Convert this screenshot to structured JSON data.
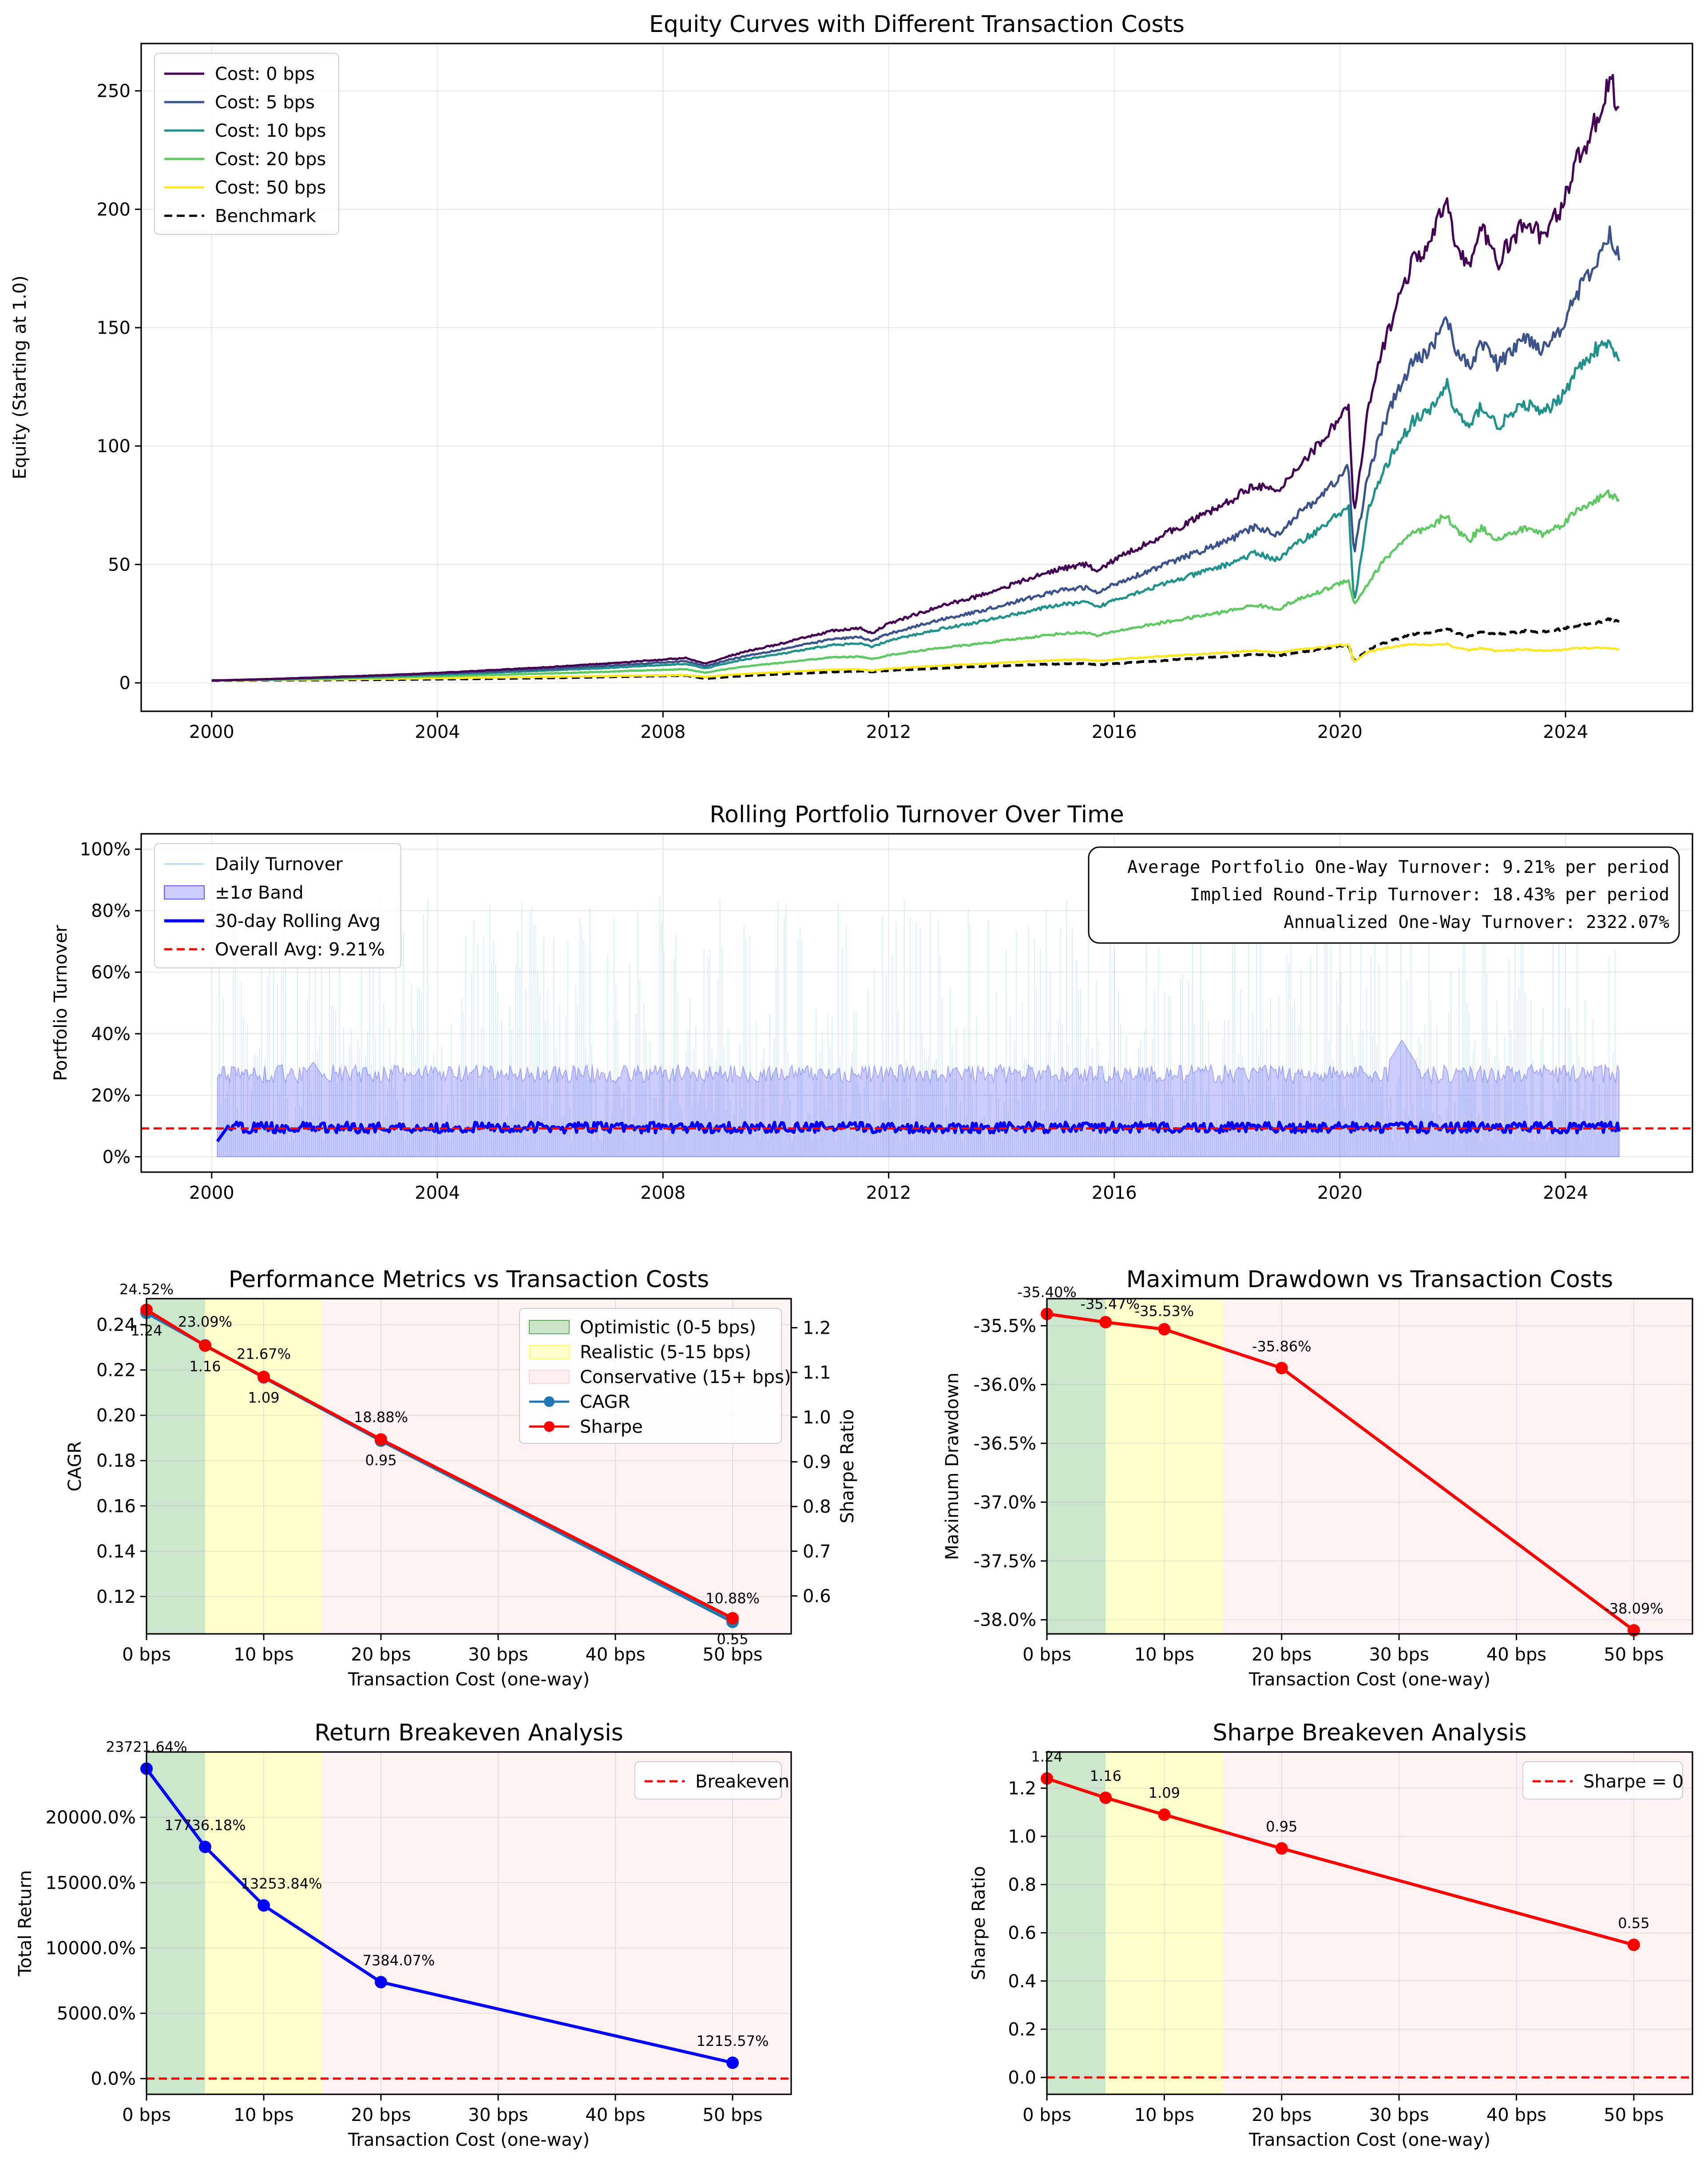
{
  "figure": {
    "panels": 6
  },
  "colors": {
    "cost_0": "#440154",
    "cost_5": "#3b528b",
    "cost_10": "#21918c",
    "cost_20": "#5ec962",
    "cost_50": "#fde725",
    "benchmark": "#000000",
    "band": "#0000ff",
    "rolling": "#0000ff",
    "avg_line": "#ff0000",
    "sharpe": "#ff0000",
    "cagr": "#1f77b4",
    "total_return": "#0000ff",
    "zone_optimistic": "#008000",
    "zone_realistic": "#ffff00",
    "zone_conservative": "#ffc0cb"
  },
  "chart_data": [
    {
      "id": "equity",
      "type": "line",
      "title": "Equity Curves with Different Transaction Costs",
      "xlabel": "",
      "ylabel": "Equity (Starting at 1.0)",
      "xlim": [
        1998.75,
        2026.25
      ],
      "ylim": [
        -12,
        270
      ],
      "x_ticks": [
        2000,
        2004,
        2008,
        2012,
        2016,
        2020,
        2024
      ],
      "x_tick_labels": [
        "2000",
        "2004",
        "2008",
        "2012",
        "2016",
        "2020",
        "2024"
      ],
      "y_ticks": [
        0,
        50,
        100,
        150,
        200,
        250
      ],
      "y_tick_labels": [
        "0",
        "50",
        "100",
        "150",
        "200",
        "250"
      ],
      "grid": true,
      "legend_position": "top-left",
      "x": [
        2000.0,
        2001.0,
        2002.0,
        2003.0,
        2004.0,
        2005.0,
        2006.0,
        2007.0,
        2007.8,
        2008.4,
        2008.75,
        2009.2,
        2009.6,
        2010.0,
        2010.5,
        2011.0,
        2011.5,
        2011.7,
        2012.0,
        2012.5,
        2013.0,
        2013.5,
        2014.0,
        2014.5,
        2015.0,
        2015.5,
        2015.7,
        2016.0,
        2016.5,
        2017.0,
        2017.5,
        2018.0,
        2018.5,
        2018.9,
        2019.2,
        2019.6,
        2020.0,
        2020.15,
        2020.25,
        2020.5,
        2020.75,
        2021.0,
        2021.3,
        2021.6,
        2021.9,
        2022.0,
        2022.3,
        2022.5,
        2022.8,
        2023.0,
        2023.3,
        2023.6,
        2023.9,
        2024.2,
        2024.5,
        2024.8,
        2024.95
      ],
      "series": [
        {
          "name": "Cost: 0 bps",
          "color_key": "cost_0",
          "dash": false,
          "values": [
            1,
            1.6,
            2.4,
            3.2,
            4.2,
            5.4,
            6.7,
            8.2,
            9.5,
            10.5,
            8.0,
            11.5,
            14.0,
            16.0,
            19.0,
            22.0,
            23.0,
            21.0,
            25.0,
            29.0,
            33.0,
            36.0,
            40.0,
            44.0,
            48.0,
            50.0,
            47.0,
            52.0,
            58.0,
            64.0,
            70.0,
            76.0,
            84.0,
            80.0,
            90.0,
            100.0,
            112.0,
            118.0,
            70.0,
            115.0,
            140.0,
            160.0,
            178.0,
            185.0,
            205.0,
            190.0,
            175.0,
            192.0,
            178.0,
            185.0,
            195.0,
            188.0,
            200.0,
            220.0,
            235.0,
            255.0,
            240.0
          ]
        },
        {
          "name": "Cost: 5 bps",
          "color_key": "cost_5",
          "dash": false,
          "values": [
            1,
            1.5,
            2.2,
            2.9,
            3.8,
            4.8,
            5.9,
            7.2,
            8.3,
            9.2,
            7.0,
            10.0,
            12.0,
            13.7,
            16.1,
            18.5,
            19.3,
            17.6,
            20.8,
            24.0,
            27.2,
            29.6,
            32.7,
            35.8,
            38.9,
            40.3,
            37.8,
            41.7,
            46.3,
            50.9,
            55.4,
            59.9,
            65.9,
            62.6,
            70.2,
            77.7,
            86.8,
            91.3,
            54.0,
            88.4,
            107.2,
            122.1,
            135.5,
            140.5,
            155.3,
            143.7,
            132.1,
            144.9,
            134.1,
            139.1,
            146.4,
            140.9,
            149.6,
            164.3,
            175.1,
            189.7,
            178.2
          ]
        },
        {
          "name": "Cost: 10 bps",
          "color_key": "cost_10",
          "dash": false,
          "values": [
            1,
            1.45,
            2.0,
            2.7,
            3.4,
            4.3,
            5.3,
            6.3,
            7.3,
            8.0,
            6.1,
            8.7,
            10.5,
            11.9,
            13.9,
            16.0,
            16.6,
            15.1,
            17.8,
            20.5,
            23.2,
            25.2,
            27.8,
            30.3,
            32.9,
            34.0,
            31.8,
            35.1,
            38.9,
            42.6,
            46.3,
            50.0,
            54.8,
            52.0,
            58.2,
            64.3,
            71.7,
            75.3,
            33.0,
            72.6,
            88.0,
            100.0,
            110.7,
            114.6,
            126.4,
            116.8,
            107.1,
            117.3,
            108.4,
            112.3,
            118.0,
            113.4,
            120.3,
            131.9,
            140.4,
            143.0,
            134.0
          ]
        },
        {
          "name": "Cost: 20 bps",
          "color_key": "cost_20",
          "dash": false,
          "values": [
            1,
            1.35,
            1.75,
            2.2,
            2.75,
            3.35,
            4.0,
            4.7,
            5.35,
            5.8,
            4.3,
            6.1,
            7.3,
            8.2,
            9.5,
            10.8,
            11.1,
            10.0,
            11.7,
            13.4,
            15.0,
            16.2,
            17.7,
            19.2,
            20.7,
            21.3,
            19.8,
            21.7,
            23.9,
            26.0,
            28.1,
            30.2,
            32.9,
            31.1,
            34.6,
            38.0,
            42.1,
            44.0,
            33.0,
            42.0,
            50.7,
            57.3,
            63.1,
            65.1,
            71.5,
            65.8,
            60.2,
            65.7,
            60.5,
            62.5,
            65.5,
            62.8,
            66.4,
            72.6,
            77.0,
            80.0,
            76.0
          ]
        },
        {
          "name": "Cost: 50 bps",
          "color_key": "cost_50",
          "dash": false,
          "values": [
            1,
            1.2,
            1.45,
            1.7,
            1.95,
            2.25,
            2.55,
            2.85,
            3.1,
            3.25,
            2.5,
            3.4,
            4.0,
            4.4,
            5.0,
            5.6,
            5.7,
            5.2,
            6.0,
            6.7,
            7.4,
            7.9,
            8.5,
            9.1,
            9.6,
            9.8,
            9.2,
            9.9,
            10.7,
            11.4,
            12.1,
            12.8,
            13.6,
            12.8,
            13.9,
            14.8,
            15.9,
            16.2,
            9.0,
            13.0,
            14.5,
            15.5,
            16.3,
            16.0,
            16.5,
            15.2,
            13.8,
            14.6,
            13.4,
            13.8,
            14.1,
            13.5,
            13.9,
            14.6,
            14.8,
            14.5,
            14.0
          ]
        },
        {
          "name": "Benchmark",
          "color_key": "benchmark",
          "dash": true,
          "values": [
            1,
            1.1,
            1.2,
            1.35,
            1.55,
            1.8,
            2.1,
            2.5,
            2.9,
            3.1,
            1.8,
            2.6,
            3.2,
            3.6,
            4.1,
            4.6,
            5.0,
            4.6,
            5.2,
            5.8,
            6.3,
            6.8,
            7.2,
            7.6,
            8.0,
            8.2,
            7.6,
            8.1,
            8.8,
            9.6,
            10.4,
            11.2,
            12.2,
            11.3,
            12.7,
            14.0,
            15.5,
            16.0,
            9.0,
            14.0,
            16.5,
            18.5,
            20.5,
            21.0,
            23.0,
            21.5,
            19.5,
            21.8,
            20.5,
            21.2,
            22.0,
            21.4,
            22.6,
            24.0,
            25.0,
            27.0,
            26.0
          ]
        }
      ]
    },
    {
      "id": "turnover",
      "type": "area",
      "title": "Rolling Portfolio Turnover Over Time",
      "xlabel": "",
      "ylabel": "Portfolio Turnover",
      "xlim": [
        1998.75,
        2026.25
      ],
      "ylim": [
        -0.05,
        1.05
      ],
      "x_ticks": [
        2000,
        2004,
        2008,
        2012,
        2016,
        2020,
        2024
      ],
      "x_tick_labels": [
        "2000",
        "2004",
        "2008",
        "2012",
        "2016",
        "2020",
        "2024"
      ],
      "y_ticks": [
        0,
        0.2,
        0.4,
        0.6,
        0.8,
        1.0
      ],
      "y_tick_labels": [
        "0%",
        "20%",
        "40%",
        "60%",
        "80%",
        "100%"
      ],
      "grid": true,
      "legend_position": "top-left",
      "series_names": [
        "Daily Turnover",
        "±1σ Band",
        "30-day Rolling Avg",
        "Overall Avg: 9.21%"
      ],
      "overall_avg": 0.0921,
      "x_start": 2000.1,
      "x_end": 2024.95,
      "rolling_avg_level": 0.095,
      "band_upper_level": 0.27,
      "band_upper_bumps": [
        {
          "x": 2021.1,
          "value": 0.38
        },
        {
          "x": 2001.8,
          "value": 0.31
        }
      ],
      "daily_peak_level": 0.85,
      "stats_box": {
        "position": "top-right",
        "lines": [
          "Average Portfolio One-Way Turnover: 9.21% per period",
          "Implied Round-Trip Turnover: 18.43% per period",
          "Annualized One-Way Turnover: 2322.07%"
        ]
      }
    },
    {
      "id": "performance",
      "type": "line",
      "title": "Performance Metrics vs Transaction Costs",
      "xlabel": "Transaction Cost (one-way)",
      "ylabel": "CAGR",
      "ylabel_right": "Sharpe Ratio",
      "xlim": [
        0,
        55
      ],
      "ylim": [
        0.1035,
        0.2515
      ],
      "ylim_right": [
        0.515,
        1.265
      ],
      "x_ticks": [
        0,
        10,
        20,
        30,
        40,
        50
      ],
      "x_tick_labels": [
        "0 bps",
        "10 bps",
        "20 bps",
        "30 bps",
        "40 bps",
        "50 bps"
      ],
      "y_ticks": [
        0.12,
        0.14,
        0.16,
        0.18,
        0.2,
        0.22,
        0.24
      ],
      "y_tick_labels": [
        "0.12",
        "0.14",
        "0.16",
        "0.18",
        "0.20",
        "0.22",
        "0.24"
      ],
      "y_ticks_right": [
        0.6,
        0.7,
        0.8,
        0.9,
        1.0,
        1.1,
        1.2
      ],
      "y_tick_labels_right": [
        "0.6",
        "0.7",
        "0.8",
        "0.9",
        "1.0",
        "1.1",
        "1.2"
      ],
      "grid": true,
      "legend_position": "top-right",
      "x": [
        0,
        5,
        10,
        20,
        50
      ],
      "series": [
        {
          "name": "CAGR",
          "color_key": "cagr",
          "axis": "left",
          "values": [
            0.2452,
            0.2309,
            0.2167,
            0.1888,
            0.1088
          ]
        },
        {
          "name": "Sharpe",
          "color_key": "sharpe",
          "axis": "right",
          "values": [
            1.24,
            1.16,
            1.09,
            0.95,
            0.55
          ]
        }
      ],
      "cagr_labels": [
        "24.52%",
        "23.09%",
        "21.67%",
        "18.88%",
        "10.88%"
      ],
      "sharpe_labels": [
        "1.24",
        "1.16",
        "1.09",
        "0.95",
        "0.55"
      ],
      "zones": [
        {
          "name": "Optimistic (0-5 bps)",
          "from": 0,
          "to": 5,
          "color_key": "zone_optimistic",
          "alpha": 0.2
        },
        {
          "name": "Realistic (5-15 bps)",
          "from": 5,
          "to": 15,
          "color_key": "zone_realistic",
          "alpha": 0.2
        },
        {
          "name": "Conservative (15+ bps)",
          "from": 15,
          "to": 55,
          "color_key": "zone_conservative",
          "alpha": 0.2
        }
      ]
    },
    {
      "id": "drawdown",
      "type": "line",
      "title": "Maximum Drawdown vs Transaction Costs",
      "xlabel": "Transaction Cost (one-way)",
      "ylabel": "Maximum Drawdown",
      "xlim": [
        0,
        55
      ],
      "ylim": [
        -0.3812,
        -0.3527
      ],
      "x_ticks": [
        0,
        10,
        20,
        30,
        40,
        50
      ],
      "x_tick_labels": [
        "0 bps",
        "10 bps",
        "20 bps",
        "30 bps",
        "40 bps",
        "50 bps"
      ],
      "y_ticks": [
        -0.38,
        -0.375,
        -0.37,
        -0.365,
        -0.36,
        -0.355
      ],
      "y_tick_labels": [
        "-38.0%",
        "-37.5%",
        "-37.0%",
        "-36.5%",
        "-36.0%",
        "-35.5%"
      ],
      "grid": true,
      "legend_position": "none",
      "x": [
        0,
        5,
        10,
        20,
        50
      ],
      "series": [
        {
          "name": "Max Drawdown",
          "color_key": "sharpe",
          "values": [
            -0.354,
            -0.3547,
            -0.3553,
            -0.3586,
            -0.3809
          ]
        }
      ],
      "point_labels": [
        "-35.40%",
        "-35.47%",
        "-35.53%",
        "-35.86%",
        "-38.09%"
      ],
      "zones": [
        {
          "from": 0,
          "to": 5,
          "color_key": "zone_optimistic",
          "alpha": 0.2
        },
        {
          "from": 5,
          "to": 15,
          "color_key": "zone_realistic",
          "alpha": 0.2
        },
        {
          "from": 15,
          "to": 55,
          "color_key": "zone_conservative",
          "alpha": 0.2
        }
      ]
    },
    {
      "id": "return_breakeven",
      "type": "line",
      "title": "Return Breakeven Analysis",
      "xlabel": "Transaction Cost (one-way)",
      "ylabel": "Total Return",
      "xlim": [
        0,
        55
      ],
      "ylim": [
        -1200,
        25000
      ],
      "x_ticks": [
        0,
        10,
        20,
        30,
        40,
        50
      ],
      "x_tick_labels": [
        "0 bps",
        "10 bps",
        "20 bps",
        "30 bps",
        "40 bps",
        "50 bps"
      ],
      "y_ticks": [
        0,
        5000,
        10000,
        15000,
        20000
      ],
      "y_tick_labels": [
        "0.0%",
        "5000.0%",
        "10000.0%",
        "15000.0%",
        "20000.0%"
      ],
      "grid": true,
      "legend_position": "top-right",
      "x": [
        0,
        5,
        10,
        20,
        50
      ],
      "series": [
        {
          "name": "Total Return",
          "color_key": "total_return",
          "values": [
            23721.64,
            17736.18,
            13253.84,
            7384.07,
            1215.57
          ]
        }
      ],
      "point_labels": [
        "23721.64%",
        "17736.18%",
        "13253.84%",
        "7384.07%",
        "1215.57%"
      ],
      "breakeven": {
        "name": "Breakeven",
        "value": 0
      },
      "zones": [
        {
          "from": 0,
          "to": 5,
          "color_key": "zone_optimistic",
          "alpha": 0.2
        },
        {
          "from": 5,
          "to": 15,
          "color_key": "zone_realistic",
          "alpha": 0.2
        },
        {
          "from": 15,
          "to": 55,
          "color_key": "zone_conservative",
          "alpha": 0.2
        }
      ]
    },
    {
      "id": "sharpe_breakeven",
      "type": "line",
      "title": "Sharpe Breakeven Analysis",
      "xlabel": "Transaction Cost (one-way)",
      "ylabel": "Sharpe Ratio",
      "xlim": [
        0,
        55
      ],
      "ylim": [
        -0.07,
        1.35
      ],
      "x_ticks": [
        0,
        10,
        20,
        30,
        40,
        50
      ],
      "x_tick_labels": [
        "0 bps",
        "10 bps",
        "20 bps",
        "30 bps",
        "40 bps",
        "50 bps"
      ],
      "y_ticks": [
        0,
        0.2,
        0.4,
        0.6,
        0.8,
        1.0,
        1.2
      ],
      "y_tick_labels": [
        "0.0",
        "0.2",
        "0.4",
        "0.6",
        "0.8",
        "1.0",
        "1.2"
      ],
      "grid": true,
      "legend_position": "top-right",
      "x": [
        0,
        5,
        10,
        20,
        50
      ],
      "series": [
        {
          "name": "Sharpe",
          "color_key": "sharpe",
          "values": [
            1.24,
            1.16,
            1.09,
            0.95,
            0.55
          ]
        }
      ],
      "point_labels": [
        "1.24",
        "1.16",
        "1.09",
        "0.95",
        "0.55"
      ],
      "breakeven": {
        "name": "Sharpe = 0",
        "value": 0
      },
      "zones": [
        {
          "from": 0,
          "to": 5,
          "color_key": "zone_optimistic",
          "alpha": 0.2
        },
        {
          "from": 5,
          "to": 15,
          "color_key": "zone_realistic",
          "alpha": 0.2
        },
        {
          "from": 15,
          "to": 55,
          "color_key": "zone_conservative",
          "alpha": 0.2
        }
      ]
    }
  ]
}
